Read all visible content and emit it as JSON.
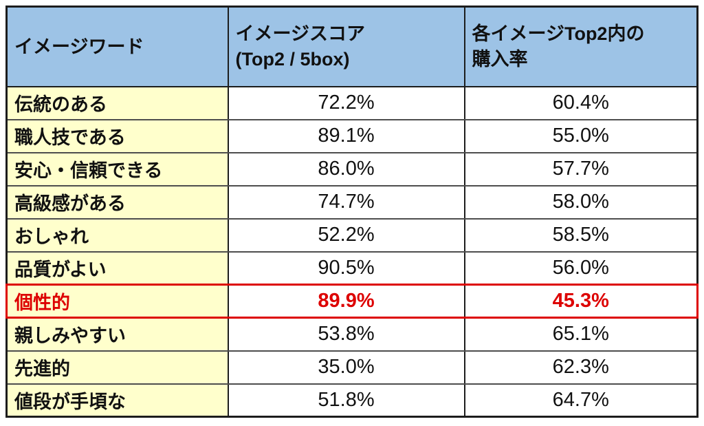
{
  "table": {
    "columns": {
      "word": "イメージワード",
      "score": "イメージスコア\n(Top2 / 5box)",
      "purchase": "各イメージTop2内の\n購入率"
    },
    "rows": [
      {
        "word": "伝統のある",
        "score": "72.2%",
        "purchase": "60.4%"
      },
      {
        "word": "職人技である",
        "score": "89.1%",
        "purchase": "55.0%"
      },
      {
        "word": "安心・信頼できる",
        "score": "86.0%",
        "purchase": "57.7%"
      },
      {
        "word": "高級感がある",
        "score": "74.7%",
        "purchase": "58.0%"
      },
      {
        "word": "おしゃれ",
        "score": "52.2%",
        "purchase": "58.5%"
      },
      {
        "word": "品質がよい",
        "score": "90.5%",
        "purchase": "56.0%"
      },
      {
        "word": "個性的",
        "score": "89.9%",
        "purchase": "45.3%",
        "highlighted": true
      },
      {
        "word": "親しみやすい",
        "score": "53.8%",
        "purchase": "65.1%"
      },
      {
        "word": "先進的",
        "score": "35.0%",
        "purchase": "62.3%"
      },
      {
        "word": "値段が手頃な",
        "score": "51.8%",
        "purchase": "64.7%"
      }
    ]
  },
  "colors": {
    "header_bg": "#9dc3e6",
    "label_bg": "#ffffcc",
    "highlight_red": "#dd0000",
    "grid_dark": "#1c1c1c",
    "grid_gray": "#4d4d4d"
  }
}
